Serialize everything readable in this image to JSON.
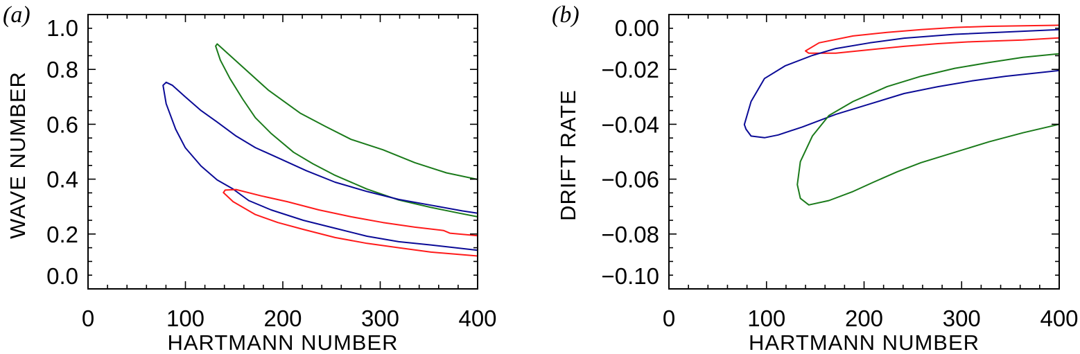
{
  "chart_data": [
    {
      "type": "line",
      "panel_label": "(a)",
      "xlabel": "HARTMANN NUMBER",
      "ylabel": "WAVE NUMBER",
      "xlim": [
        0,
        400
      ],
      "ylim": [
        0,
        1
      ],
      "x_ticks": [
        0,
        100,
        200,
        300,
        400
      ],
      "x_tick_labels": [
        "0",
        "100",
        "200",
        "300",
        "400"
      ],
      "x_minor_step": 20,
      "y_ticks": [
        0,
        0.2,
        0.4,
        0.6,
        0.8,
        1.0
      ],
      "y_tick_labels": [
        "0.0",
        "0.2",
        "0.4",
        "0.6",
        "0.8",
        "1.0"
      ],
      "y_minor_step": 0.05,
      "grid": false,
      "series": [
        {
          "color": "#1a7a1a",
          "points": [
            [
              400,
              0.399
            ],
            [
              368,
              0.423
            ],
            [
              335.5,
              0.46
            ],
            [
              302.8,
              0.507
            ],
            [
              270,
              0.545
            ],
            [
              243.9,
              0.592
            ],
            [
              217.7,
              0.641
            ],
            [
              185,
              0.725
            ],
            [
              132.6,
              0.893
            ],
            [
              131,
              0.885
            ],
            [
              135.8,
              0.834
            ],
            [
              145.7,
              0.767
            ],
            [
              158.8,
              0.692
            ],
            [
              171.8,
              0.624
            ],
            [
              188.2,
              0.566
            ],
            [
              211,
              0.498
            ],
            [
              230.8,
              0.456
            ],
            [
              253.7,
              0.414
            ],
            [
              286.4,
              0.364
            ],
            [
              319,
              0.324
            ],
            [
              352,
              0.297
            ],
            [
              381,
              0.276
            ],
            [
              400,
              0.263
            ]
          ]
        },
        {
          "color": "#0a0a96",
          "points": [
            [
              400,
              0.276
            ],
            [
              384.6,
              0.284
            ],
            [
              352,
              0.305
            ],
            [
              319,
              0.326
            ],
            [
              286.4,
              0.355
            ],
            [
              253.7,
              0.389
            ],
            [
              224,
              0.431
            ],
            [
              198,
              0.473
            ],
            [
              171.8,
              0.515
            ],
            [
              152,
              0.557
            ],
            [
              132.6,
              0.608
            ],
            [
              116,
              0.65
            ],
            [
              99.8,
              0.7
            ],
            [
              86.7,
              0.742
            ],
            [
              80.2,
              0.753
            ],
            [
              77,
              0.742
            ],
            [
              80.2,
              0.675
            ],
            [
              90,
              0.582
            ],
            [
              99.8,
              0.515
            ],
            [
              116,
              0.448
            ],
            [
              132.6,
              0.397
            ],
            [
              149,
              0.364
            ],
            [
              165,
              0.322
            ],
            [
              188,
              0.288
            ],
            [
              221,
              0.25
            ],
            [
              253.7,
              0.221
            ],
            [
              286.4,
              0.192
            ],
            [
              319,
              0.172
            ],
            [
              352,
              0.16
            ],
            [
              400,
              0.141
            ]
          ]
        },
        {
          "color": "#ff1a1a",
          "points": [
            [
              400,
              0.194
            ],
            [
              371.5,
              0.203
            ],
            [
              365,
              0.213
            ],
            [
              335.5,
              0.225
            ],
            [
              302.8,
              0.242
            ],
            [
              270,
              0.263
            ],
            [
              237,
              0.288
            ],
            [
              204.6,
              0.318
            ],
            [
              178,
              0.339
            ],
            [
              152,
              0.362
            ],
            [
              140.8,
              0.36
            ],
            [
              139,
              0.351
            ],
            [
              149,
              0.318
            ],
            [
              171.8,
              0.271
            ],
            [
              194.8,
              0.242
            ],
            [
              221,
              0.217
            ],
            [
              253.7,
              0.187
            ],
            [
              286.4,
              0.166
            ],
            [
              319,
              0.15
            ],
            [
              352,
              0.134
            ],
            [
              400,
              0.12
            ]
          ]
        }
      ]
    },
    {
      "type": "line",
      "panel_label": "(b)",
      "xlabel": "HARTMANN NUMBER",
      "ylabel": "DRIFT RATE",
      "xlim": [
        0,
        400
      ],
      "ylim": [
        -0.1,
        0
      ],
      "x_ticks": [
        0,
        100,
        200,
        300,
        400
      ],
      "x_tick_labels": [
        "0",
        "100",
        "200",
        "300",
        "400"
      ],
      "x_minor_step": 20,
      "y_ticks": [
        -0.1,
        -0.08,
        -0.06,
        -0.04,
        -0.02,
        0
      ],
      "y_tick_labels": [
        "−0.10",
        "−0.08",
        "−0.06",
        "−0.04",
        "−0.02",
        "0.00"
      ],
      "y_minor_step": 0.005,
      "grid": false,
      "series": [
        {
          "color": "#ff1a1a",
          "points": [
            [
              400,
              -0.0039
            ],
            [
              328,
              -0.0043
            ],
            [
              293,
              -0.0047
            ],
            [
              258.3,
              -0.0055
            ],
            [
              223.5,
              -0.0065
            ],
            [
              188.7,
              -0.0078
            ],
            [
              153.9,
              -0.0103
            ],
            [
              140,
              -0.01327
            ],
            [
              143.4,
              -0.0141
            ],
            [
              171,
              -0.0141
            ],
            [
              206,
              -0.0128
            ],
            [
              241,
              -0.0116
            ],
            [
              275.7,
              -0.0106
            ],
            [
              310.5,
              -0.0099
            ],
            [
              362.8,
              -0.0093
            ],
            [
              400,
              -0.0085
            ]
          ]
        },
        {
          "color": "#0a0a96",
          "points": [
            [
              400,
              -0.0055
            ],
            [
              345,
              -0.0064
            ],
            [
              293,
              -0.0072
            ],
            [
              241,
              -0.0086
            ],
            [
              206,
              -0.0103
            ],
            [
              171,
              -0.0124
            ],
            [
              147,
              -0.0149
            ],
            [
              119,
              -0.0187
            ],
            [
              98,
              -0.0233
            ],
            [
              84.2,
              -0.0317
            ],
            [
              77.3,
              -0.0401
            ],
            [
              79,
              -0.0418
            ],
            [
              84.2,
              -0.0443
            ],
            [
              98,
              -0.0449
            ],
            [
              112,
              -0.0439
            ],
            [
              136.5,
              -0.041
            ],
            [
              171,
              -0.0364
            ],
            [
              206,
              -0.0326
            ],
            [
              241,
              -0.0288
            ],
            [
              275.7,
              -0.0263
            ],
            [
              310.5,
              -0.0242
            ],
            [
              345,
              -0.0225
            ],
            [
              400,
              -0.0204
            ]
          ]
        },
        {
          "color": "#1a7a1a",
          "points": [
            [
              400,
              -0.0143
            ],
            [
              362.8,
              -0.0156
            ],
            [
              328,
              -0.0175
            ],
            [
              293,
              -0.0196
            ],
            [
              258.3,
              -0.0225
            ],
            [
              223.5,
              -0.0263
            ],
            [
              188.7,
              -0.0317
            ],
            [
              164,
              -0.0368
            ],
            [
              147,
              -0.0443
            ],
            [
              134.7,
              -0.0536
            ],
            [
              131.6,
              -0.062
            ],
            [
              134.7,
              -0.067
            ],
            [
              143.4,
              -0.0694
            ],
            [
              164,
              -0.0678
            ],
            [
              188.7,
              -0.0645
            ],
            [
              209.6,
              -0.0611
            ],
            [
              234,
              -0.0573
            ],
            [
              258.3,
              -0.054
            ],
            [
              293,
              -0.0502
            ],
            [
              328,
              -0.0464
            ],
            [
              362.8,
              -0.0431
            ],
            [
              400,
              -0.04
            ]
          ]
        }
      ]
    }
  ]
}
